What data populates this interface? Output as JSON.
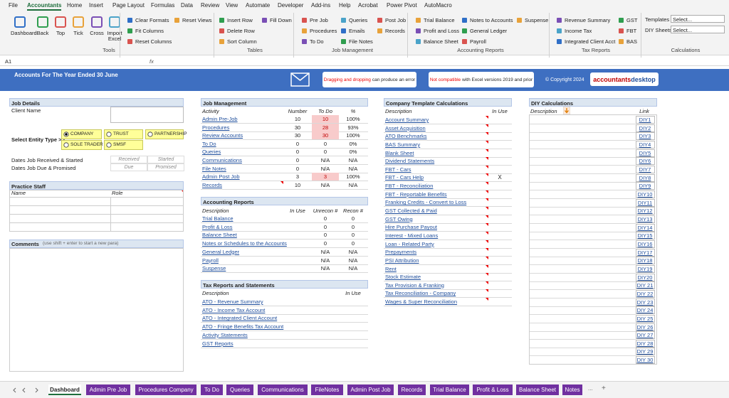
{
  "ribbon": {
    "tabs": [
      "File",
      "Accountants",
      "Home",
      "Insert",
      "Page Layout",
      "Formulas",
      "Data",
      "Review",
      "View",
      "Automate",
      "Developer",
      "Add-ins",
      "Help",
      "Acrobat",
      "Power Pivot",
      "AutoMacro"
    ],
    "groups": [
      {
        "label": "Tools",
        "buttons": [
          "Dashboard",
          "Back",
          "Top",
          "Tick",
          "Cross",
          "Import Excel",
          "Clear Formats",
          "Fit Columns",
          "Reset Columns",
          "Reset Views"
        ]
      },
      {
        "label": "Tables",
        "buttons": [
          "Insert Row",
          "Delete Row",
          "Sort Column",
          "Fill Down"
        ]
      },
      {
        "label": "Job Management",
        "buttons": [
          "Pre Job",
          "Procedures",
          "To Do",
          "Queries",
          "Emails",
          "File Notes",
          "Post Job",
          "Records"
        ]
      },
      {
        "label": "Accounting Reports",
        "buttons": [
          "Trial Balance",
          "Profit and Loss",
          "Balance Sheet",
          "Notes to Accounts",
          "General Ledger",
          "Payroll",
          "Suspense"
        ]
      },
      {
        "label": "Tax Reports",
        "buttons": [
          "Revenue Summary",
          "Income Tax",
          "Integrated Client Acct",
          "GST",
          "FBT",
          "BAS"
        ]
      },
      {
        "label": "Calculations",
        "fields": [
          {
            "label": "Templates",
            "value": "Select..."
          },
          {
            "label": "DIY Sheets",
            "value": "Select..."
          }
        ]
      }
    ]
  },
  "formula_bar": {
    "cell": "A1",
    "fx": "fx"
  },
  "banner": {
    "title": "Accounts For The Year Ended 30 June",
    "notices": [
      [
        "Dragging and dropping",
        "can produce an error"
      ],
      [
        "Not compatible",
        "with Excel versions 2019 and prior"
      ]
    ],
    "copyright": "© Copyright 2024",
    "logo": [
      "accountants",
      "desktop"
    ]
  },
  "job_details": {
    "title": "Job Details",
    "client_name": "Client Name",
    "entity_prompt": "Select Entity Type >>",
    "entity_types": [
      {
        "label": "COMPANY",
        "selected": true
      },
      {
        "label": "TRUST",
        "selected": false
      },
      {
        "label": "PARTNERSHIP",
        "selected": false
      },
      {
        "label": "SOLE TRADER",
        "selected": false
      },
      {
        "label": "SMSF",
        "selected": false
      }
    ],
    "dates": [
      {
        "label": "Dates Job Received & Started",
        "fields": [
          "Received",
          "Started"
        ]
      },
      {
        "label": "Dates Job Due & Promised",
        "fields": [
          "Due",
          "Promised"
        ]
      }
    ]
  },
  "practice_staff": {
    "title": "Practice Staff",
    "columns": [
      "Name",
      "Role"
    ]
  },
  "comments": {
    "title": "Comments",
    "hint": "(use shift + enter to start a new para)"
  },
  "job_management": {
    "title": "Job Management",
    "columns": [
      "Activity",
      "Number",
      "To Do",
      "%"
    ],
    "rows": [
      [
        "Admin Pre-Job",
        10,
        10,
        "100%"
      ],
      [
        "Procedures",
        30,
        28,
        "93%"
      ],
      [
        "Review Accounts",
        30,
        30,
        "100%"
      ],
      [
        "To Do",
        0,
        0,
        "0%"
      ],
      [
        "Queries",
        0,
        0,
        "0%"
      ],
      [
        "Communications",
        0,
        "N/A",
        "N/A"
      ],
      [
        "File Notes",
        0,
        "N/A",
        "N/A"
      ],
      [
        "Admin Post Job",
        3,
        3,
        "100%"
      ],
      [
        "Records",
        10,
        "N/A",
        "N/A"
      ]
    ]
  },
  "accounting_reports": {
    "title": "Accounting Reports",
    "columns": [
      "Description",
      "In Use",
      "Unrecon #",
      "Recon #"
    ],
    "rows": [
      [
        "Trial Balance",
        0,
        0
      ],
      [
        "Profit & Loss",
        0,
        0
      ],
      [
        "Balance Sheet",
        0,
        0
      ],
      [
        "Notes or Schedules to the Accounts",
        0,
        0
      ],
      [
        "General Ledger",
        "N/A",
        "N/A"
      ],
      [
        "Payroll",
        "N/A",
        "N/A"
      ],
      [
        "Suspense",
        "N/A",
        "N/A"
      ]
    ]
  },
  "tax_reports": {
    "title": "Tax Reports and Statements",
    "columns": [
      "Description",
      "In Use"
    ],
    "rows": [
      "ATO - Revenue Summary",
      "ATO - Income Tax Account",
      "ATO - Integrated Client Account",
      "ATO - Fringe Benefits Tax Account",
      "Activity Statements",
      "GST Reports"
    ]
  },
  "company_templates": {
    "title": "Company Template Calculations",
    "columns": [
      "Description",
      "In Use"
    ],
    "rows": [
      {
        "name": "Account Summary"
      },
      {
        "name": "Asset Acquisition"
      },
      {
        "name": "ATO Benchmarks"
      },
      {
        "name": "BAS Summary"
      },
      {
        "name": "Blank Sheet"
      },
      {
        "name": "Dividend Statements"
      },
      {
        "name": "FBT - Cars"
      },
      {
        "name": "FBT - Cars Help",
        "in_use": "X"
      },
      {
        "name": "FBT - Reconciliation"
      },
      {
        "name": "FBT - Reportable Benefits"
      },
      {
        "name": "Franking Credits - Convert to Loss"
      },
      {
        "name": "GST Collected & Paid"
      },
      {
        "name": "GST Owing"
      },
      {
        "name": "Hire Purchase Payout"
      },
      {
        "name": "Interest - Mixed Loans"
      },
      {
        "name": "Loan - Related Party"
      },
      {
        "name": "Prepayments"
      },
      {
        "name": "PSI Attribution"
      },
      {
        "name": "Rent"
      },
      {
        "name": "Stock Estimate"
      },
      {
        "name": "Tax Provision & Franking"
      },
      {
        "name": "Tax Reconciliation - Company"
      },
      {
        "name": "Wages & Super Reconciliation"
      }
    ]
  },
  "diy_calculations": {
    "title": "DIY Calculations",
    "columns": [
      "Description",
      "Link"
    ],
    "links": [
      "DIY1",
      "DIY2",
      "DIY3",
      "DIY4",
      "DIY5",
      "DIY6",
      "DIY7",
      "DIY8",
      "DIY9",
      "DIY10",
      "DIY11",
      "DIY12",
      "DIY13",
      "DIY14",
      "DIY15",
      "DIY16",
      "DIY17",
      "DIY18",
      "DIY19",
      "DIY20",
      "DIY 21",
      "DIY 22",
      "DIY 23",
      "DIY 24",
      "DIY 25",
      "DIY 26",
      "DIY 27",
      "DIY 28",
      "DIY 29",
      "DIY 30"
    ]
  },
  "sheet_tabs": {
    "tabs": [
      "Dashboard",
      "Admin Pre Job",
      "Procedures Company",
      "To Do",
      "Queries",
      "Communications",
      "FileNotes",
      "Admin Post Job",
      "Records",
      "Trial Balance",
      "Profit & Loss",
      "Balance Sheet",
      "Notes"
    ],
    "more": "...",
    "add": "+"
  }
}
